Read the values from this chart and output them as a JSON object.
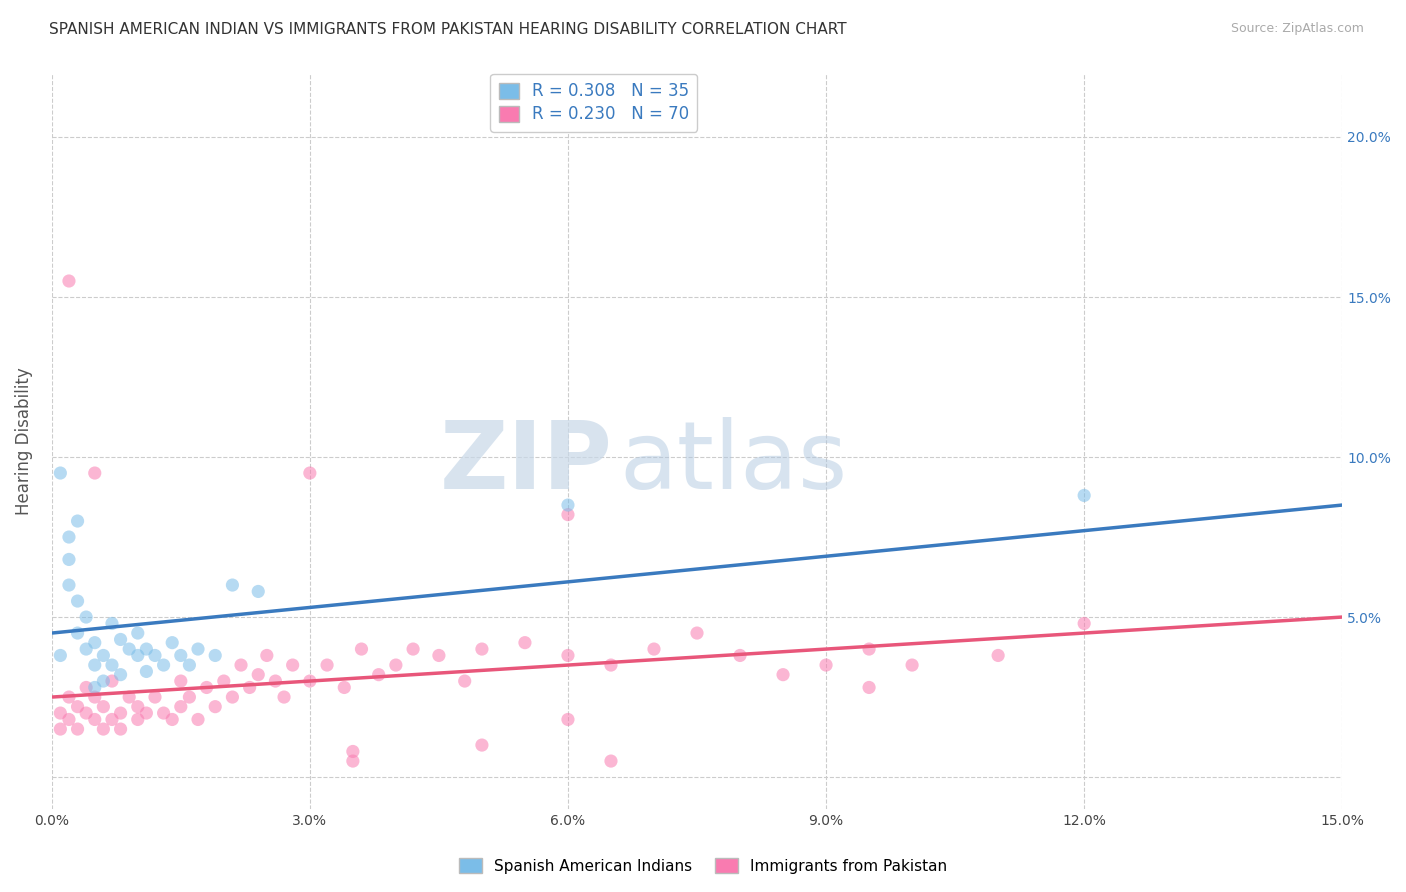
{
  "title": "SPANISH AMERICAN INDIAN VS IMMIGRANTS FROM PAKISTAN HEARING DISABILITY CORRELATION CHART",
  "source": "Source: ZipAtlas.com",
  "ylabel": "Hearing Disability",
  "xlim": [
    0.0,
    0.15
  ],
  "ylim": [
    -0.01,
    0.22
  ],
  "xticks": [
    0.0,
    0.03,
    0.06,
    0.09,
    0.12,
    0.15
  ],
  "yticks": [
    0.0,
    0.05,
    0.1,
    0.15,
    0.2
  ],
  "ytick_labels": [
    "",
    "5.0%",
    "10.0%",
    "15.0%",
    "20.0%"
  ],
  "xtick_labels": [
    "0.0%",
    "3.0%",
    "6.0%",
    "9.0%",
    "12.0%",
    "15.0%"
  ],
  "watermark_zip": "ZIP",
  "watermark_atlas": "atlas",
  "series1_color": "#7bbde8",
  "series2_color": "#f97bb0",
  "line1_color": "#3a7abf",
  "line2_color": "#e8567a",
  "series1_label": "Spanish American Indians",
  "series2_label": "Immigrants from Pakistan",
  "legend_label1": "R = 0.308   N = 35",
  "legend_label2": "R = 0.230   N = 70",
  "line1_x0": 0.0,
  "line1_y0": 0.045,
  "line1_x1": 0.15,
  "line1_y1": 0.085,
  "line2_x0": 0.0,
  "line2_y0": 0.025,
  "line2_x1": 0.15,
  "line2_y1": 0.05,
  "series1_x": [
    0.001,
    0.002,
    0.002,
    0.003,
    0.003,
    0.004,
    0.004,
    0.005,
    0.005,
    0.006,
    0.006,
    0.007,
    0.007,
    0.008,
    0.008,
    0.009,
    0.01,
    0.01,
    0.011,
    0.011,
    0.012,
    0.013,
    0.014,
    0.015,
    0.016,
    0.017,
    0.019,
    0.021,
    0.024,
    0.001,
    0.002,
    0.003,
    0.06,
    0.12,
    0.005
  ],
  "series1_y": [
    0.038,
    0.06,
    0.068,
    0.055,
    0.045,
    0.05,
    0.04,
    0.035,
    0.042,
    0.03,
    0.038,
    0.048,
    0.035,
    0.032,
    0.043,
    0.04,
    0.038,
    0.045,
    0.04,
    0.033,
    0.038,
    0.035,
    0.042,
    0.038,
    0.035,
    0.04,
    0.038,
    0.06,
    0.058,
    0.095,
    0.075,
    0.08,
    0.085,
    0.088,
    0.028
  ],
  "series2_x": [
    0.001,
    0.001,
    0.002,
    0.002,
    0.003,
    0.003,
    0.004,
    0.004,
    0.005,
    0.005,
    0.006,
    0.006,
    0.007,
    0.007,
    0.008,
    0.008,
    0.009,
    0.01,
    0.01,
    0.011,
    0.012,
    0.013,
    0.014,
    0.015,
    0.015,
    0.016,
    0.017,
    0.018,
    0.019,
    0.02,
    0.021,
    0.022,
    0.023,
    0.024,
    0.025,
    0.026,
    0.027,
    0.028,
    0.03,
    0.032,
    0.034,
    0.036,
    0.038,
    0.04,
    0.042,
    0.045,
    0.048,
    0.05,
    0.055,
    0.06,
    0.065,
    0.07,
    0.075,
    0.08,
    0.085,
    0.09,
    0.095,
    0.1,
    0.11,
    0.12,
    0.002,
    0.005,
    0.03,
    0.035,
    0.06,
    0.065,
    0.095,
    0.035,
    0.06,
    0.05
  ],
  "series2_y": [
    0.02,
    0.015,
    0.018,
    0.025,
    0.022,
    0.015,
    0.02,
    0.028,
    0.018,
    0.025,
    0.015,
    0.022,
    0.018,
    0.03,
    0.02,
    0.015,
    0.025,
    0.018,
    0.022,
    0.02,
    0.025,
    0.02,
    0.018,
    0.022,
    0.03,
    0.025,
    0.018,
    0.028,
    0.022,
    0.03,
    0.025,
    0.035,
    0.028,
    0.032,
    0.038,
    0.03,
    0.025,
    0.035,
    0.03,
    0.035,
    0.028,
    0.04,
    0.032,
    0.035,
    0.04,
    0.038,
    0.03,
    0.04,
    0.042,
    0.038,
    0.035,
    0.04,
    0.045,
    0.038,
    0.032,
    0.035,
    0.04,
    0.035,
    0.038,
    0.048,
    0.155,
    0.095,
    0.095,
    0.008,
    0.082,
    0.005,
    0.028,
    0.005,
    0.018,
    0.01
  ]
}
